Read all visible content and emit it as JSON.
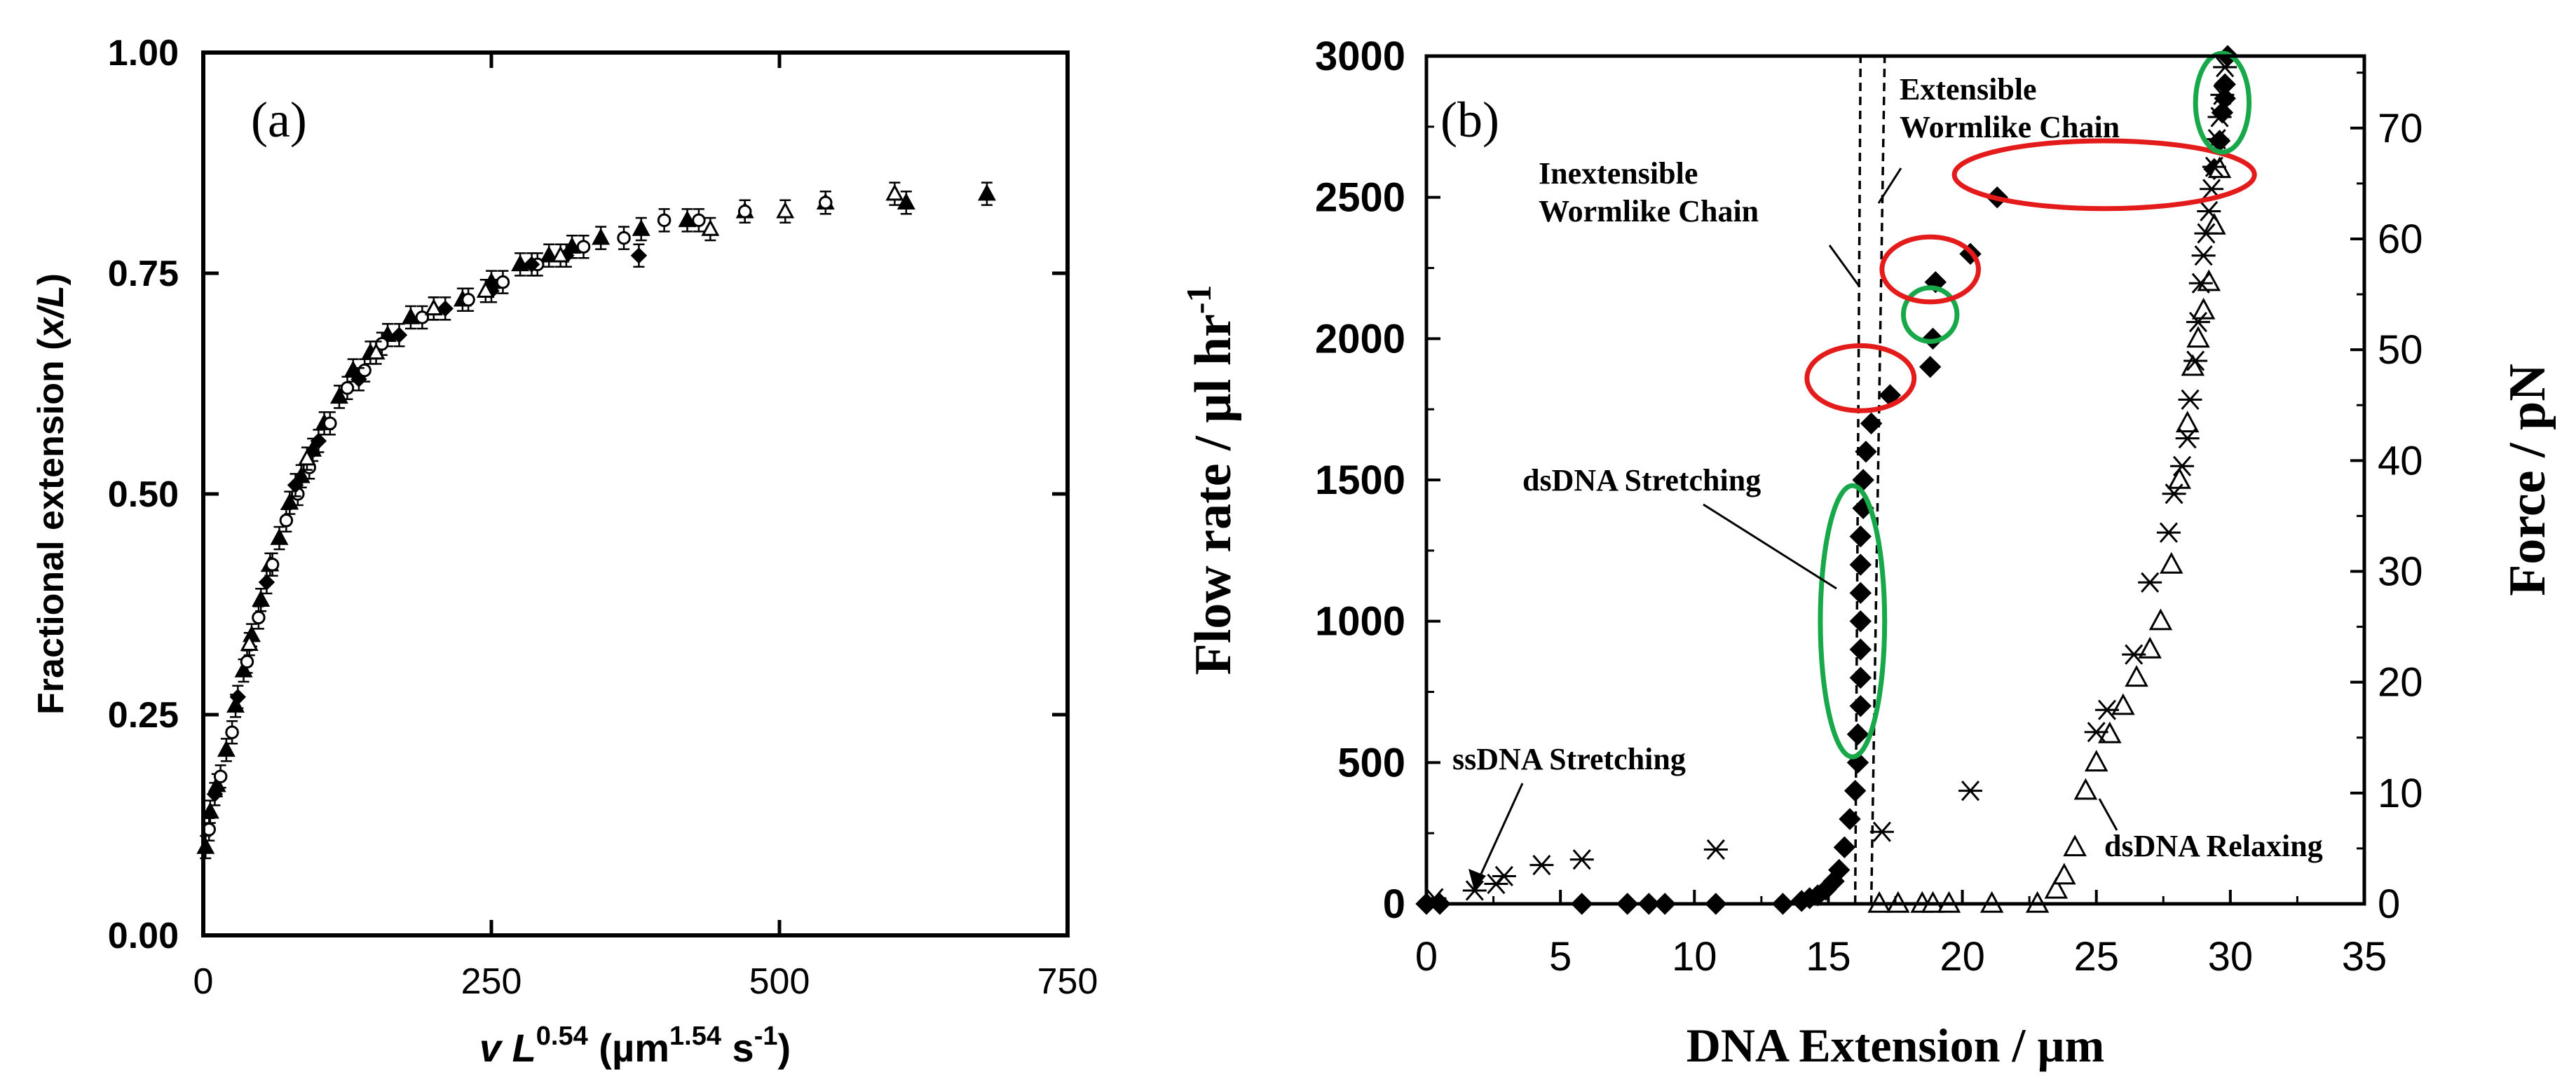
{
  "chart_data": [
    {
      "panel": "(a)",
      "type": "scatter",
      "xlabel_parts": [
        "v L",
        "0.54",
        " (µm",
        "1.54",
        " s",
        "-1",
        ")"
      ],
      "ylabel_parts": [
        "Fractional extension (",
        "x/L",
        ")"
      ],
      "xlim": [
        0,
        750
      ],
      "ylim": [
        0,
        1
      ],
      "xticks": [
        0,
        250,
        500,
        750
      ],
      "xtick_labels": [
        "0",
        "250",
        "500",
        "750"
      ],
      "yticks": [
        0,
        0.25,
        0.5,
        0.75,
        1.0
      ],
      "ytick_labels": [
        "0.00",
        "0.25",
        "0.50",
        "0.75",
        "1.00"
      ],
      "series": [
        {
          "name": "filled triangles",
          "marker": "triangle-filled",
          "x": [
            2,
            6,
            12,
            20,
            28,
            35,
            42,
            50,
            58,
            66,
            75,
            85,
            95,
            105,
            118,
            130,
            145,
            160,
            180,
            200,
            225,
            250,
            275,
            300,
            320,
            345,
            380,
            420,
            470,
            540,
            610,
            680
          ],
          "y": [
            0.1,
            0.14,
            0.17,
            0.21,
            0.26,
            0.3,
            0.34,
            0.38,
            0.42,
            0.45,
            0.49,
            0.52,
            0.55,
            0.58,
            0.61,
            0.64,
            0.66,
            0.68,
            0.7,
            0.71,
            0.72,
            0.74,
            0.76,
            0.77,
            0.78,
            0.79,
            0.8,
            0.81,
            0.82,
            0.83,
            0.83,
            0.84
          ]
        },
        {
          "name": "open circles",
          "marker": "circle-open",
          "x": [
            5,
            15,
            25,
            38,
            48,
            60,
            72,
            82,
            92,
            110,
            125,
            140,
            155,
            190,
            230,
            260,
            290,
            330,
            365,
            400,
            430,
            470,
            540
          ],
          "y": [
            0.12,
            0.18,
            0.23,
            0.31,
            0.36,
            0.42,
            0.47,
            0.5,
            0.53,
            0.58,
            0.62,
            0.64,
            0.67,
            0.7,
            0.72,
            0.74,
            0.76,
            0.78,
            0.79,
            0.81,
            0.81,
            0.82,
            0.83
          ]
        },
        {
          "name": "filled diamonds",
          "marker": "diamond-filled",
          "x": [
            10,
            30,
            55,
            80,
            100,
            135,
            170,
            210,
            250,
            285,
            315,
            378
          ],
          "y": [
            0.16,
            0.27,
            0.4,
            0.51,
            0.56,
            0.63,
            0.68,
            0.71,
            0.73,
            0.76,
            0.77,
            0.77
          ]
        },
        {
          "name": "open triangles",
          "marker": "triangle-open",
          "x": [
            40,
            90,
            150,
            200,
            245,
            310,
            440,
            505,
            600
          ],
          "y": [
            0.33,
            0.54,
            0.66,
            0.71,
            0.73,
            0.77,
            0.8,
            0.82,
            0.84
          ]
        }
      ]
    },
    {
      "panel": "(b)",
      "type": "scatter",
      "xlabel": "DNA Extension / µm",
      "ylabel_parts": [
        "Flow rate / µl hr",
        "-1"
      ],
      "y2label": "Force / pN",
      "xlim": [
        0,
        35
      ],
      "ylim": [
        0,
        3000
      ],
      "y2lim": [
        0,
        76.5
      ],
      "xticks": [
        0,
        5,
        10,
        15,
        20,
        25,
        30,
        35
      ],
      "xtick_labels": [
        "0",
        "5",
        "10",
        "15",
        "20",
        "25",
        "30",
        "35"
      ],
      "yticks": [
        0,
        500,
        1000,
        1500,
        2000,
        2500,
        3000
      ],
      "ytick_labels": [
        "0",
        "500",
        "1000",
        "1500",
        "2000",
        "2500",
        "3000"
      ],
      "y2ticks": [
        0,
        10,
        20,
        30,
        40,
        50,
        60,
        70
      ],
      "y2tick_labels": [
        "0",
        "10",
        "20",
        "30",
        "40",
        "50",
        "60",
        "70"
      ],
      "reference_lines": [
        {
          "label_lines": [
            "Inextensible",
            "Wormlike Chain"
          ],
          "x": [
            16.0,
            16.2
          ],
          "y": [
            0,
            3000
          ]
        },
        {
          "label_lines": [
            "Extensible",
            "Wormlike Chain"
          ],
          "x": [
            16.6,
            17.1
          ],
          "y": [
            0,
            3000
          ]
        }
      ],
      "series": [
        {
          "name": "flow stretching",
          "marker": "diamond-filled",
          "x": [
            0,
            0.5,
            5.8,
            7.5,
            8.3,
            8.9,
            10.8,
            13.3,
            14.0,
            14.3,
            14.6,
            14.9,
            15.2,
            15.4,
            15.6,
            15.8,
            16.0,
            16.1,
            16.1,
            16.2,
            16.2,
            16.2,
            16.2,
            16.2,
            16.2,
            16.2,
            16.3,
            16.3,
            16.4,
            16.6,
            17.3,
            18.8,
            18.9,
            19.0,
            20.3,
            21.3,
            29.4,
            29.6,
            29.7,
            29.8,
            29.8,
            29.9
          ],
          "y": [
            0,
            0,
            0,
            0,
            0,
            0,
            0,
            0,
            10,
            20,
            30,
            50,
            80,
            120,
            200,
            300,
            400,
            500,
            600,
            700,
            800,
            900,
            1000,
            1100,
            1200,
            1300,
            1400,
            1500,
            1600,
            1700,
            1800,
            1900,
            2000,
            2200,
            2300,
            2500,
            2600,
            2700,
            2800,
            2850,
            2900,
            3000
          ]
        },
        {
          "name": "dsDNA relaxing",
          "marker": "triangle-open",
          "x": [
            16.9,
            17.6,
            18.5,
            18.9,
            19.5,
            21.1,
            22.8,
            23.5,
            23.8,
            24.2,
            24.6,
            25.0,
            25.5,
            26.0,
            26.5,
            27.0,
            27.4,
            27.8,
            28.1,
            28.4,
            28.6,
            28.8,
            29.0,
            29.2,
            29.4,
            29.6
          ],
          "y": [
            0,
            0,
            0,
            0,
            0,
            0,
            0,
            50,
            100,
            200,
            400,
            500,
            600,
            700,
            800,
            900,
            1000,
            1200,
            1500,
            1700,
            1900,
            2000,
            2100,
            2200,
            2400,
            2600
          ]
        },
        {
          "name": "force (asterisks)",
          "marker": "asterisk",
          "axis": "right",
          "x": [
            0.3,
            1.8,
            2.6,
            2.9,
            4.3,
            5.8,
            10.8,
            17.0,
            20.3,
            25.0,
            25.4,
            26.4,
            27.0,
            27.7,
            27.9,
            28.2,
            28.4,
            28.5,
            28.7,
            28.8,
            28.9,
            29.0,
            29.1,
            29.2,
            29.3,
            29.4,
            29.5,
            29.6,
            29.7,
            29.8
          ],
          "y": [
            0.5,
            1.2,
            1.8,
            2.5,
            3.5,
            4.0,
            4.9,
            6.5,
            10.2,
            15.5,
            17.5,
            22.5,
            29.0,
            33.5,
            37.0,
            39.5,
            42.0,
            45.5,
            49.0,
            52.5,
            56.0,
            58.5,
            60.5,
            62.5,
            64.5,
            66.5,
            69.0,
            71.0,
            73.0,
            75.5
          ]
        }
      ],
      "annotations": [
        {
          "label": "dsDNA Stretching",
          "target": [
            16.1,
            1450
          ]
        },
        {
          "label": "ssDNA Stretching",
          "target": [
            1.9,
            80
          ]
        },
        {
          "label": "dsDNA Relaxing",
          "target": [
            24.8,
            400
          ]
        }
      ],
      "highlight_ellipses": [
        {
          "color": "green",
          "center": [
            15.9,
            1000
          ],
          "radii": [
            1.2,
            480
          ]
        },
        {
          "color": "red",
          "center": [
            16.2,
            1860
          ],
          "radii": [
            2.0,
            115
          ]
        },
        {
          "color": "green",
          "center": [
            18.8,
            2085
          ],
          "radii": [
            1.0,
            95
          ]
        },
        {
          "color": "red",
          "center": [
            18.8,
            2245
          ],
          "radii": [
            1.8,
            115
          ]
        },
        {
          "color": "red",
          "center": [
            25.3,
            2580
          ],
          "radii": [
            5.6,
            120
          ]
        },
        {
          "color": "green",
          "center": [
            29.7,
            2835
          ],
          "radii": [
            1.0,
            175
          ]
        }
      ]
    }
  ],
  "colors": {
    "axis": "#000000",
    "red_ellipse": "#e31b1b",
    "green_ellipse": "#18a84a"
  }
}
